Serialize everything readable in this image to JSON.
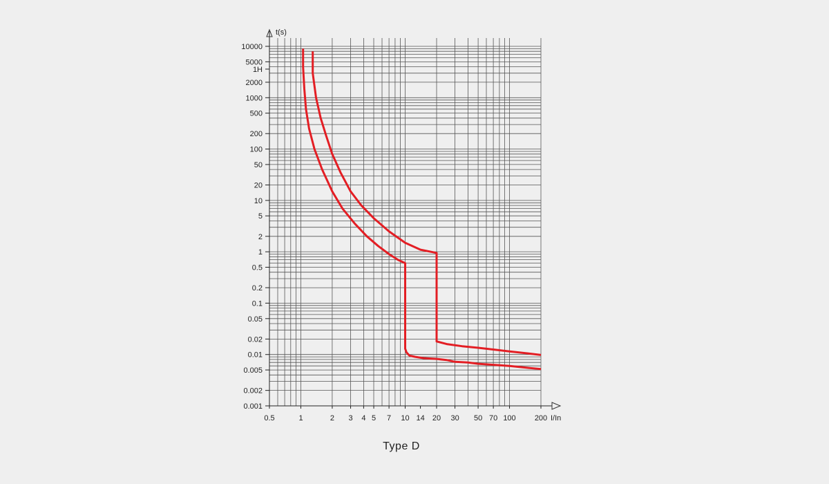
{
  "chart_data": {
    "type": "line",
    "title": "Type D",
    "xlabel": "I/In",
    "ylabel": "t(s)",
    "x_scale": "log",
    "y_scale": "log",
    "xlim": [
      0.5,
      200
    ],
    "ylim": [
      0.001,
      10000
    ],
    "grid": true,
    "line_color": "#e31e24",
    "x_ticks": [
      {
        "value": 0.5,
        "label": "0.5"
      },
      {
        "value": 1,
        "label": "1"
      },
      {
        "value": 2,
        "label": "2"
      },
      {
        "value": 3,
        "label": "3"
      },
      {
        "value": 4,
        "label": "4"
      },
      {
        "value": 5,
        "label": "5"
      },
      {
        "value": 7,
        "label": "7"
      },
      {
        "value": 10,
        "label": "10"
      },
      {
        "value": 14,
        "label": "14"
      },
      {
        "value": 20,
        "label": "20"
      },
      {
        "value": 30,
        "label": "30"
      },
      {
        "value": 50,
        "label": "50"
      },
      {
        "value": 70,
        "label": "70"
      },
      {
        "value": 100,
        "label": "100"
      },
      {
        "value": 200,
        "label": "200"
      }
    ],
    "y_ticks": [
      {
        "value": 0.001,
        "label": "0.001"
      },
      {
        "value": 0.002,
        "label": "0.002"
      },
      {
        "value": 0.005,
        "label": "0.005"
      },
      {
        "value": 0.01,
        "label": "0.01"
      },
      {
        "value": 0.02,
        "label": "0.02"
      },
      {
        "value": 0.05,
        "label": "0.05"
      },
      {
        "value": 0.1,
        "label": "0.1"
      },
      {
        "value": 0.2,
        "label": "0.2"
      },
      {
        "value": 0.5,
        "label": "0.5"
      },
      {
        "value": 1,
        "label": "1"
      },
      {
        "value": 2,
        "label": "2"
      },
      {
        "value": 5,
        "label": "5"
      },
      {
        "value": 10,
        "label": "10"
      },
      {
        "value": 20,
        "label": "20"
      },
      {
        "value": 50,
        "label": "50"
      },
      {
        "value": 100,
        "label": "100"
      },
      {
        "value": 200,
        "label": "200"
      },
      {
        "value": 500,
        "label": "500"
      },
      {
        "value": 1000,
        "label": "1000"
      },
      {
        "value": 2000,
        "label": "2000"
      },
      {
        "value": 3600,
        "label": "1H"
      },
      {
        "value": 5000,
        "label": "5000"
      },
      {
        "value": 10000,
        "label": "10000"
      }
    ],
    "series": [
      {
        "x": [
          1.05,
          1.05,
          1.08,
          1.12,
          1.2,
          1.35,
          1.6,
          2.0,
          2.5,
          3.3,
          4.3,
          5.5,
          7.0,
          8.5,
          10.0,
          10.0,
          10.3,
          11.0,
          12.5,
          15.0,
          20.0,
          25.0,
          30.0,
          40.0,
          50.0,
          70.0,
          100.0,
          150.0,
          200.0
        ],
        "y": [
          9000,
          4000,
          1500,
          600,
          250,
          100,
          40,
          15,
          7,
          3.5,
          2,
          1.3,
          0.9,
          0.7,
          0.6,
          0.013,
          0.011,
          0.0095,
          0.009,
          0.0085,
          0.0082,
          0.0078,
          0.0072,
          0.007,
          0.0066,
          0.0063,
          0.006,
          0.0055,
          0.0052
        ]
      },
      {
        "x": [
          1.3,
          1.3,
          1.4,
          1.55,
          1.75,
          2.0,
          2.4,
          3.0,
          3.8,
          5.0,
          7.0,
          10.0,
          14.0,
          20.0,
          20.0,
          25.0,
          35.0,
          50.0,
          70.0,
          100.0,
          150.0,
          200.0
        ],
        "y": [
          8000,
          3000,
          1000,
          400,
          180,
          80,
          35,
          15,
          8,
          4.5,
          2.5,
          1.5,
          1.1,
          0.95,
          0.018,
          0.016,
          0.0145,
          0.0135,
          0.0125,
          0.0115,
          0.0105,
          0.0098
        ]
      }
    ]
  }
}
